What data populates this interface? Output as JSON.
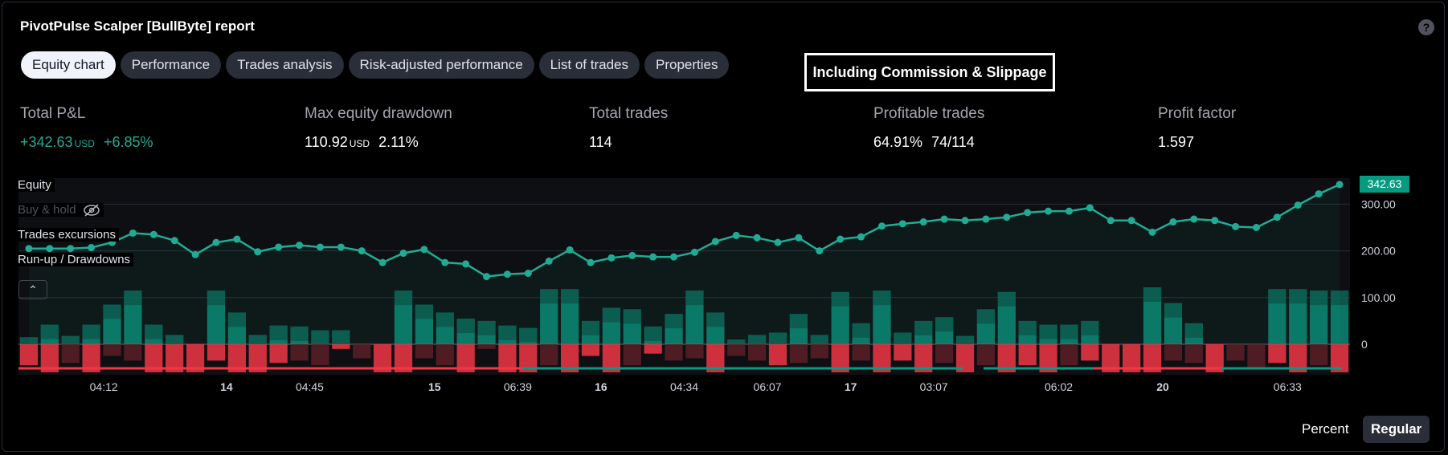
{
  "header": {
    "title": "PivotPulse Scalper [BullByte] report",
    "help_icon": "question-icon"
  },
  "tabs": [
    {
      "label": "Equity chart",
      "active": true
    },
    {
      "label": "Performance",
      "active": false
    },
    {
      "label": "Trades analysis",
      "active": false
    },
    {
      "label": "Risk-adjusted performance",
      "active": false
    },
    {
      "label": "List of trades",
      "active": false
    },
    {
      "label": "Properties",
      "active": false
    }
  ],
  "note": "Including Commission & Slippage",
  "stats": {
    "total_pnl": {
      "label": "Total P&L",
      "value": "+342.63",
      "unit": "USD",
      "extra": "+6.85%"
    },
    "max_dd": {
      "label": "Max equity drawdown",
      "value": "110.92",
      "unit": "USD",
      "extra": "2.11%"
    },
    "total_trades": {
      "label": "Total trades",
      "value": "114"
    },
    "profitable": {
      "label": "Profitable trades",
      "value": "64.91%",
      "extra": "74/114"
    },
    "profit_factor": {
      "label": "Profit factor",
      "value": "1.597"
    }
  },
  "legend": {
    "equity": "Equity",
    "buy_hold": "Buy & hold",
    "excursions": "Trades excursions",
    "runup": "Run-up / Drawdowns"
  },
  "colors": {
    "equity": "#22ab94",
    "green_bar": "#089981",
    "red_bar": "#f23645"
  },
  "last_value": "342.63",
  "bottom": {
    "percent": "Percent",
    "regular": "Regular"
  },
  "chart_data": {
    "type": "line",
    "title": "",
    "y_ticks": [
      "300.00",
      "200.00",
      "100.00",
      "0"
    ],
    "ylim": [
      -60,
      345
    ],
    "x_ticks": [
      {
        "label": "04:12",
        "bold": false,
        "index": 3.6
      },
      {
        "label": "14",
        "bold": true,
        "index": 9.5
      },
      {
        "label": "04:45",
        "bold": false,
        "index": 13.5
      },
      {
        "label": "15",
        "bold": true,
        "index": 19.5
      },
      {
        "label": "06:39",
        "bold": false,
        "index": 23.5
      },
      {
        "label": "16",
        "bold": true,
        "index": 27.5
      },
      {
        "label": "04:34",
        "bold": false,
        "index": 31.5
      },
      {
        "label": "06:07",
        "bold": false,
        "index": 35.5
      },
      {
        "label": "17",
        "bold": true,
        "index": 39.5
      },
      {
        "label": "03:07",
        "bold": false,
        "index": 43.5
      },
      {
        "label": "06:02",
        "bold": false,
        "index": 49.5
      },
      {
        "label": "20",
        "bold": true,
        "index": 54.5
      },
      {
        "label": "06:33",
        "bold": false,
        "index": 60.5
      }
    ],
    "series": [
      {
        "name": "Equity",
        "values": [
          205,
          205,
          205,
          207,
          218,
          238,
          235,
          222,
          192,
          218,
          225,
          198,
          208,
          212,
          208,
          208,
          200,
          175,
          195,
          203,
          175,
          172,
          145,
          150,
          152,
          178,
          202,
          175,
          185,
          190,
          187,
          187,
          197,
          220,
          233,
          228,
          218,
          228,
          200,
          225,
          230,
          253,
          258,
          262,
          268,
          265,
          268,
          272,
          282,
          285,
          285,
          292,
          265,
          265,
          240,
          262,
          268,
          265,
          252,
          250,
          272,
          298,
          322,
          342
        ]
      },
      {
        "name": "Run-up",
        "values": [
          15,
          42,
          18,
          42,
          85,
          115,
          42,
          20,
          0,
          115,
          68,
          20,
          40,
          38,
          30,
          30,
          0,
          0,
          115,
          85,
          68,
          55,
          50,
          40,
          35,
          118,
          118,
          50,
          78,
          75,
          38,
          65,
          115,
          68,
          10,
          20,
          25,
          65,
          20,
          112,
          45,
          115,
          25,
          50,
          58,
          18,
          75,
          112,
          50,
          42,
          42,
          50,
          0,
          0,
          122,
          88,
          45,
          0,
          0,
          0,
          118,
          118,
          115,
          115
        ]
      },
      {
        "name": "Drawdown",
        "values": [
          -45,
          -60,
          -40,
          -60,
          -25,
          -35,
          -60,
          -60,
          -60,
          -35,
          -60,
          -60,
          -40,
          -35,
          -45,
          -10,
          -30,
          -60,
          -60,
          -30,
          -45,
          -60,
          -10,
          -60,
          -60,
          -45,
          -60,
          -25,
          -60,
          -45,
          -20,
          -35,
          -30,
          -60,
          -25,
          -35,
          -45,
          -40,
          -30,
          -60,
          -35,
          -60,
          -35,
          -60,
          -40,
          -60,
          -45,
          -60,
          -45,
          -60,
          -45,
          -35,
          -60,
          -60,
          -60,
          -35,
          -40,
          -60,
          -35,
          -50,
          -40,
          -60,
          -45,
          -60
        ]
      },
      {
        "name": "Buy & hold",
        "values": []
      }
    ]
  }
}
